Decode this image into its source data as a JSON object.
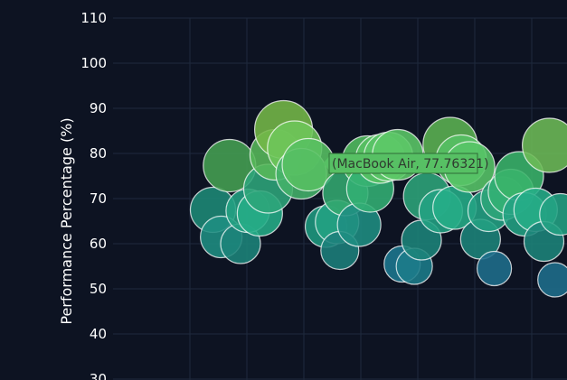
{
  "chart_data": {
    "type": "scatter",
    "ylabel": "Performance Percentage (%)",
    "ylim": [
      30,
      110
    ],
    "yticks": [
      30,
      40,
      50,
      60,
      70,
      80,
      90,
      100,
      110
    ],
    "xlim": [
      0,
      100
    ],
    "grid": true,
    "points": [
      {
        "x": 5.0,
        "y": 67.5,
        "size": 25,
        "color": "#1e8a76"
      },
      {
        "x": 6.5,
        "y": 61.5,
        "size": 23,
        "color": "#1f8e82"
      },
      {
        "x": 8.0,
        "y": 77.3,
        "size": 29,
        "color": "#45a052"
      },
      {
        "x": 10.0,
        "y": 60.0,
        "size": 22,
        "color": "#1d847a"
      },
      {
        "x": 11.3,
        "y": 67.3,
        "size": 24,
        "color": "#23a283"
      },
      {
        "x": 13.5,
        "y": 66.7,
        "size": 25,
        "color": "#26ad88"
      },
      {
        "x": 15.0,
        "y": 72.2,
        "size": 27,
        "color": "#2ea57a"
      },
      {
        "x": 16.3,
        "y": 79.7,
        "size": 28,
        "color": "#58b85a"
      },
      {
        "x": 17.8,
        "y": 85.3,
        "size": 32,
        "color": "#75b848"
      },
      {
        "x": 19.8,
        "y": 81.2,
        "size": 30,
        "color": "#6dc65a"
      },
      {
        "x": 21.0,
        "y": 75.5,
        "size": 28,
        "color": "#44b26a"
      },
      {
        "x": 22.3,
        "y": 77.5,
        "size": 29,
        "color": "#58c062"
      },
      {
        "x": 25.5,
        "y": 63.8,
        "size": 23,
        "color": "#1f9a7f"
      },
      {
        "x": 27.5,
        "y": 64.8,
        "size": 24,
        "color": "#23a283"
      },
      {
        "x": 28.0,
        "y": 58.5,
        "size": 21,
        "color": "#1d807b"
      },
      {
        "x": 29.0,
        "y": 71.2,
        "size": 25,
        "color": "#33a970"
      },
      {
        "x": 31.5,
        "y": 64.2,
        "size": 24,
        "color": "#1f8e82"
      },
      {
        "x": 33.0,
        "y": 78.3,
        "size": 28,
        "color": "#52be60"
      },
      {
        "x": 33.5,
        "y": 72.2,
        "size": 26,
        "color": "#33b074"
      },
      {
        "x": 35.3,
        "y": 78.8,
        "size": 27,
        "color": "#58c062"
      },
      {
        "x": 36.8,
        "y": 79.3,
        "size": 27,
        "color": "#5ac466"
      },
      {
        "x": 38.5,
        "y": 79.7,
        "size": 28,
        "color": "#5cc868"
      },
      {
        "x": 39.3,
        "y": 55.5,
        "size": 20,
        "color": "#1d7890"
      },
      {
        "x": 41.5,
        "y": 55.0,
        "size": 20,
        "color": "#1d7c8a"
      },
      {
        "x": 42.8,
        "y": 60.8,
        "size": 22,
        "color": "#1d847a"
      },
      {
        "x": 43.8,
        "y": 70.5,
        "size": 26,
        "color": "#2ea57a"
      },
      {
        "x": 46.3,
        "y": 67.2,
        "size": 24,
        "color": "#23a283"
      },
      {
        "x": 48.0,
        "y": 82.0,
        "size": 30,
        "color": "#5cb352"
      },
      {
        "x": 48.8,
        "y": 68.0,
        "size": 24,
        "color": "#26ad88"
      },
      {
        "x": 50.0,
        "y": 78.5,
        "size": 28,
        "color": "#55c064"
      },
      {
        "x": 51.5,
        "y": 77.0,
        "size": 28,
        "color": "#58c568"
      },
      {
        "x": 53.5,
        "y": 61.0,
        "size": 22,
        "color": "#1d847a"
      },
      {
        "x": 55.0,
        "y": 67.3,
        "size": 23,
        "color": "#23a283"
      },
      {
        "x": 56.0,
        "y": 54.5,
        "size": 19,
        "color": "#1f6e8c"
      },
      {
        "x": 57.5,
        "y": 70.0,
        "size": 24,
        "color": "#2ea57a"
      },
      {
        "x": 59.0,
        "y": 71.5,
        "size": 25,
        "color": "#33b074"
      },
      {
        "x": 60.5,
        "y": 75.0,
        "size": 27,
        "color": "#3ab46a"
      },
      {
        "x": 61.5,
        "y": 66.5,
        "size": 24,
        "color": "#23a283"
      },
      {
        "x": 63.5,
        "y": 67.5,
        "size": 24,
        "color": "#26ad88"
      },
      {
        "x": 65.0,
        "y": 60.5,
        "size": 22,
        "color": "#1d847a"
      },
      {
        "x": 66.0,
        "y": 81.8,
        "size": 30,
        "color": "#6dbb56"
      },
      {
        "x": 67.0,
        "y": 52.0,
        "size": 19,
        "color": "#1f6e8c"
      },
      {
        "x": 68.0,
        "y": 66.5,
        "size": 23,
        "color": "#23a283"
      }
    ],
    "tooltip": "(MacBook Air, 77.76321)"
  }
}
